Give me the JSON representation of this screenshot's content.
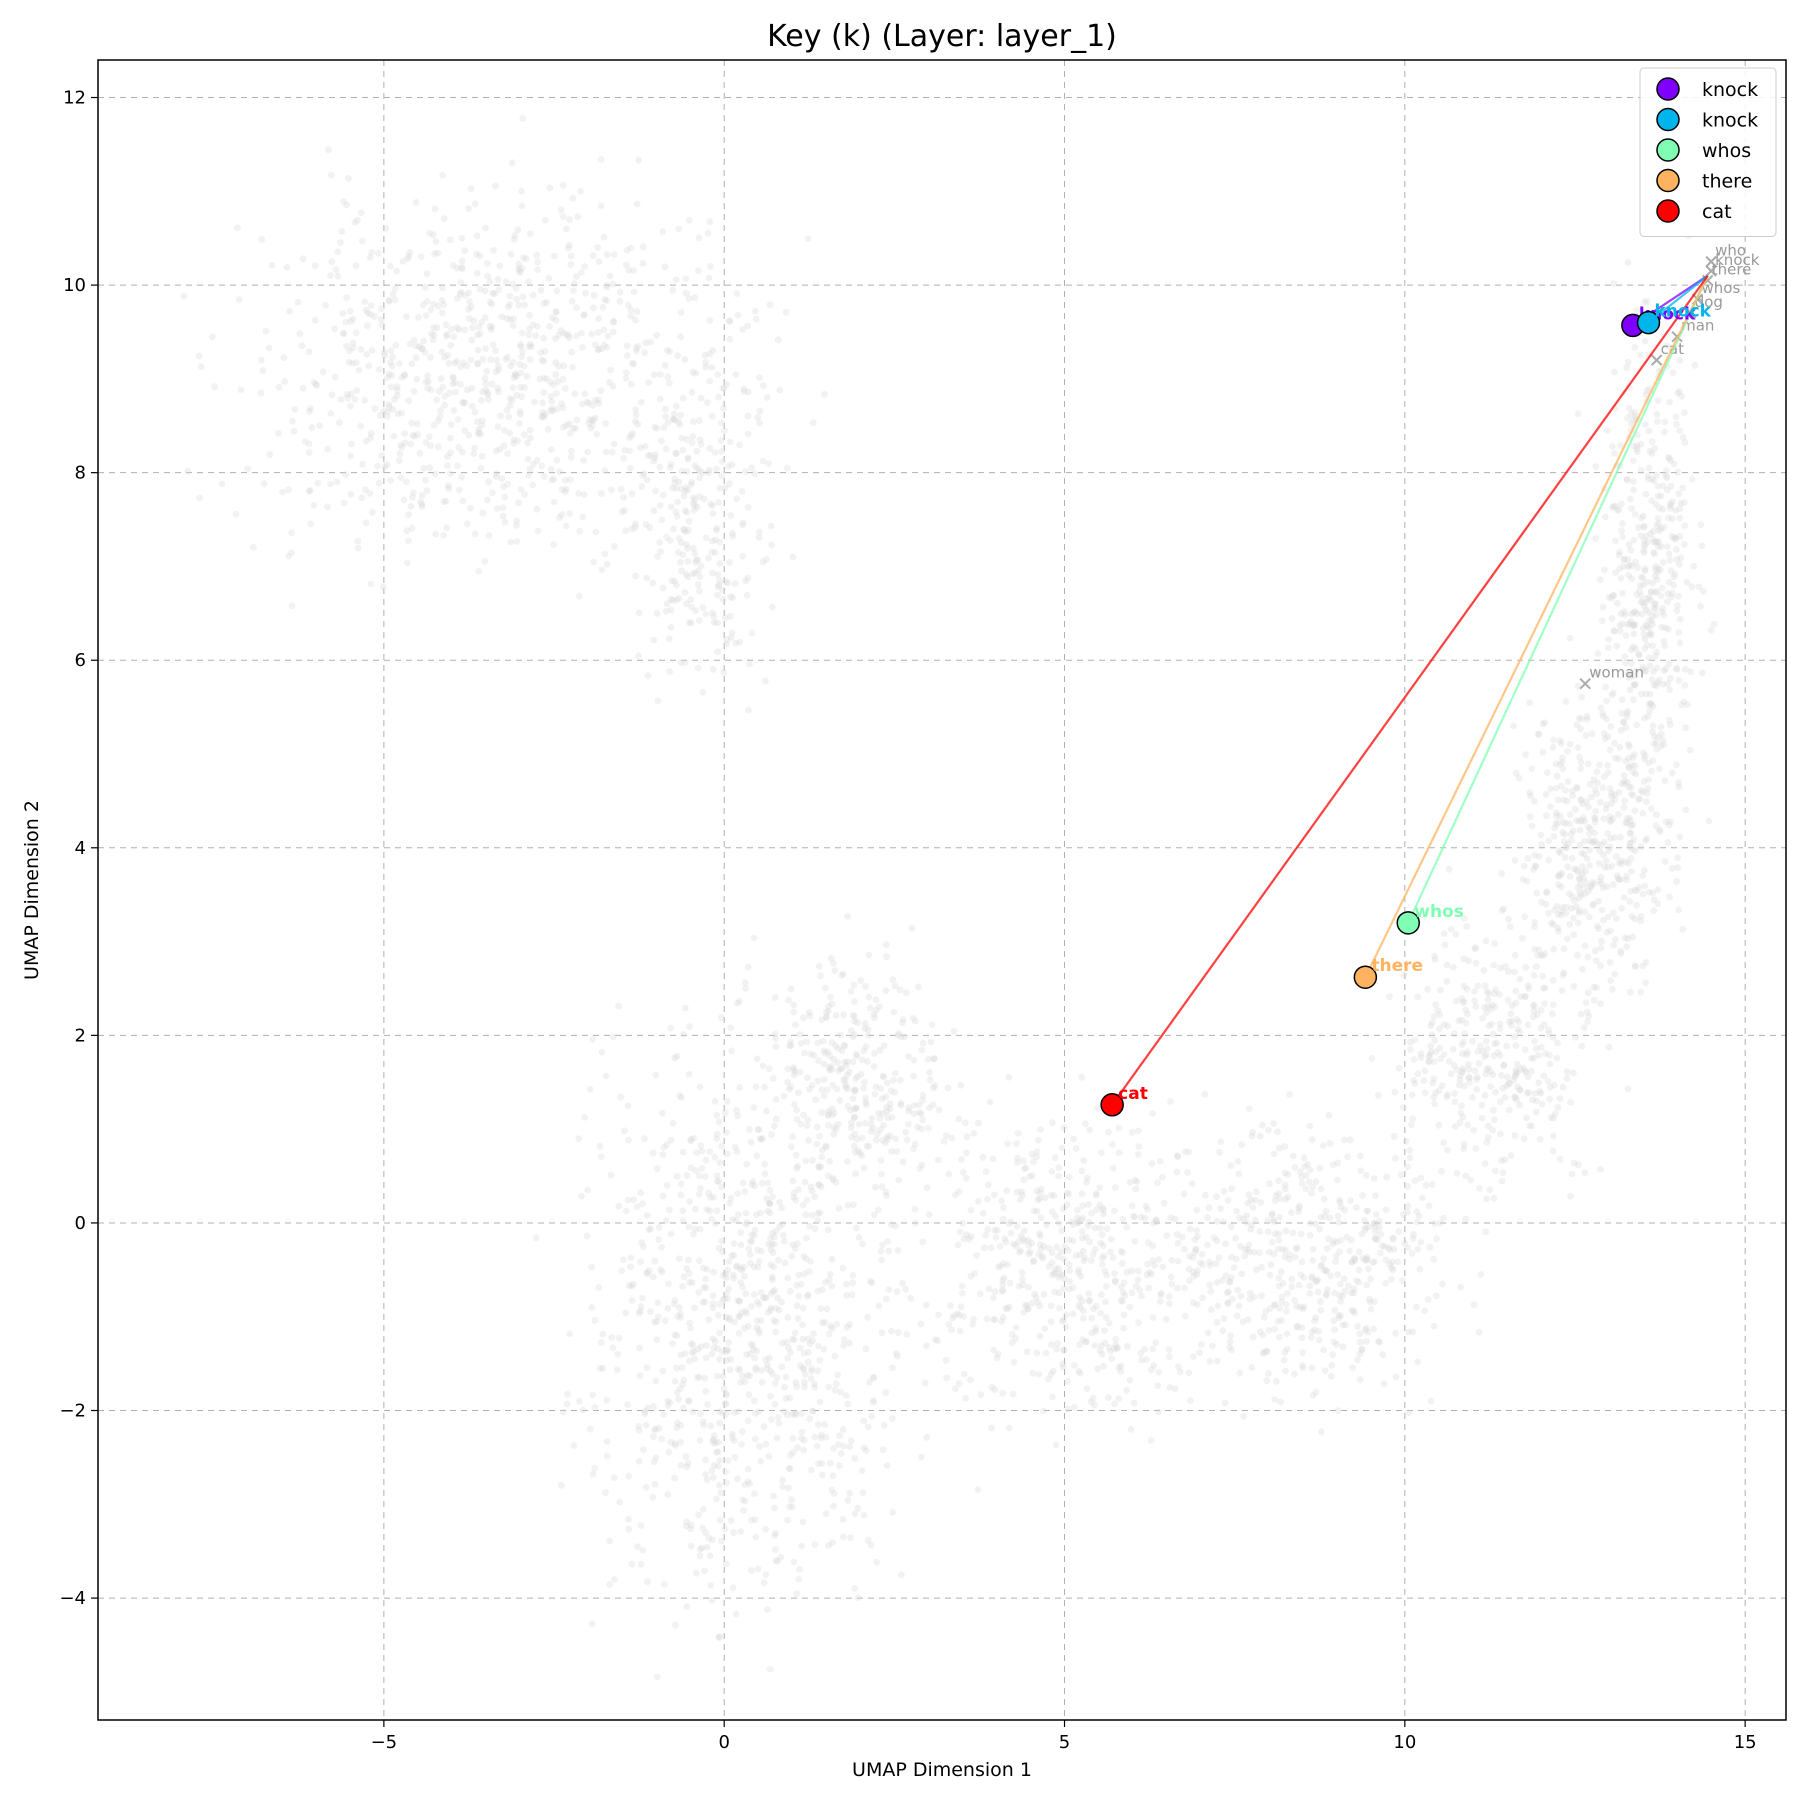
{
  "chart_data": {
    "type": "scatter",
    "title": "Key (k) (Layer: layer_1)",
    "xlabel": "UMAP Dimension 1",
    "ylabel": "UMAP Dimension 2",
    "xlim": [
      -9.2,
      15.6
    ],
    "ylim": [
      -5.3,
      12.4
    ],
    "xticks": [
      -5,
      0,
      5,
      10,
      15
    ],
    "yticks": [
      -4,
      -2,
      0,
      2,
      4,
      6,
      8,
      10,
      12
    ],
    "grid": true,
    "legend_position": "top-right",
    "background_points": {
      "color": "#d9d9d9",
      "description_clusters": [
        {
          "cx": -3.2,
          "cy": 9.0,
          "rx": 3.6,
          "ry": 1.9,
          "n": 900
        },
        {
          "cx": -0.4,
          "cy": 7.4,
          "rx": 1.0,
          "ry": 1.8,
          "n": 220
        },
        {
          "cx": 0.3,
          "cy": -1.0,
          "rx": 2.3,
          "ry": 3.0,
          "n": 900
        },
        {
          "cx": 2.0,
          "cy": 1.5,
          "rx": 1.3,
          "ry": 1.3,
          "n": 300
        },
        {
          "cx": 5.0,
          "cy": -0.4,
          "rx": 2.0,
          "ry": 1.6,
          "n": 500
        },
        {
          "cx": 8.6,
          "cy": -0.4,
          "rx": 2.1,
          "ry": 1.4,
          "n": 500
        },
        {
          "cx": 11.3,
          "cy": 1.8,
          "rx": 1.4,
          "ry": 1.4,
          "n": 350
        },
        {
          "cx": 12.8,
          "cy": 4.0,
          "rx": 1.1,
          "ry": 1.7,
          "n": 400
        },
        {
          "cx": 13.6,
          "cy": 6.8,
          "rx": 0.7,
          "ry": 2.6,
          "n": 450
        }
      ]
    },
    "reference_words": [
      {
        "label": "who",
        "x": 14.5,
        "y": 10.25
      },
      {
        "label": "knock",
        "x": 14.5,
        "y": 10.15
      },
      {
        "label": "there",
        "x": 14.45,
        "y": 10.05
      },
      {
        "label": "whos",
        "x": 14.3,
        "y": 9.85
      },
      {
        "label": "dog",
        "x": 14.2,
        "y": 9.7
      },
      {
        "label": "man",
        "x": 14.0,
        "y": 9.45
      },
      {
        "label": "cat",
        "x": 13.7,
        "y": 9.2
      },
      {
        "label": "woman",
        "x": 12.65,
        "y": 5.75
      }
    ],
    "arrow_target": {
      "x": 14.45,
      "y": 10.1
    },
    "series": [
      {
        "name": "knock",
        "x": 13.35,
        "y": 9.57,
        "color": "#8000ff"
      },
      {
        "name": "knock",
        "x": 13.58,
        "y": 9.6,
        "color": "#00b5eb"
      },
      {
        "name": "whos",
        "x": 10.05,
        "y": 3.2,
        "color": "#80ffb4"
      },
      {
        "name": "there",
        "x": 9.42,
        "y": 2.62,
        "color": "#ffb360"
      },
      {
        "name": "cat",
        "x": 5.7,
        "y": 1.26,
        "color": "#ff0000"
      }
    ],
    "line_colors": [
      "#8000ff",
      "#00b5eb",
      "#80ffb4",
      "#ffb360",
      "#ff0000"
    ]
  }
}
